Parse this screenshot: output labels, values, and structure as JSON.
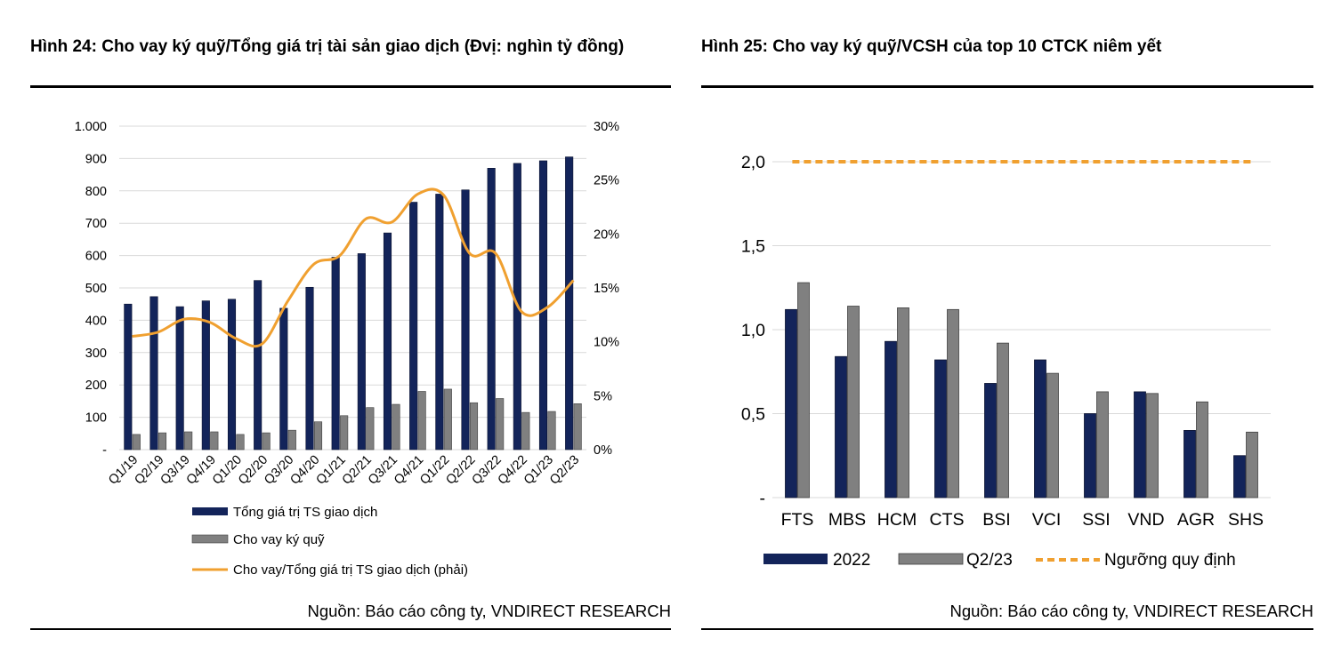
{
  "left_figure": {
    "title": "Hình 24: Cho vay ký quỹ/Tổng giá trị tài sản giao dịch (Đvị: nghìn tỷ đồng)",
    "source": "Nguồn: Báo cáo công ty, VNDIRECT RESEARCH"
  },
  "right_figure": {
    "title": "Hình 25: Cho vay ký quỹ/VCSH của top 10 CTCK niêm yết",
    "source": "Nguồn: Báo cáo công ty, VNDIRECT RESEARCH"
  },
  "colors": {
    "navy": "#13245a",
    "gray": "#808080",
    "orange": "#f0a030",
    "grid": "#d9d9d9"
  },
  "chart_data": [
    {
      "type": "bar",
      "categories": [
        "Q1/19",
        "Q2/19",
        "Q3/19",
        "Q4/19",
        "Q1/20",
        "Q2/20",
        "Q3/20",
        "Q4/20",
        "Q1/21",
        "Q2/21",
        "Q3/21",
        "Q4/21",
        "Q1/22",
        "Q2/22",
        "Q3/22",
        "Q4/22",
        "Q1/23",
        "Q2/23"
      ],
      "series": [
        {
          "name": "Tổng giá trị TS giao dịch",
          "kind": "bar",
          "axis": "left",
          "color": "#13245a",
          "values": [
            450,
            473,
            442,
            460,
            465,
            523,
            437,
            502,
            595,
            606,
            670,
            765,
            790,
            803,
            870,
            885,
            893,
            905
          ]
        },
        {
          "name": "Cho vay ký quỹ",
          "kind": "bar",
          "axis": "left",
          "color": "#808080",
          "values": [
            47,
            52,
            55,
            55,
            47,
            52,
            60,
            86,
            105,
            130,
            140,
            180,
            187,
            145,
            158,
            115,
            118,
            142
          ]
        },
        {
          "name": "Cho vay/Tổng giá trị TS giao dịch (phải)",
          "kind": "line",
          "axis": "right",
          "color": "#f0a030",
          "values": [
            10.5,
            10.9,
            12.1,
            11.8,
            10.3,
            9.8,
            13.8,
            17.2,
            18.0,
            21.4,
            21.1,
            23.7,
            23.6,
            18.2,
            18.2,
            12.8,
            13.2,
            15.7
          ]
        }
      ],
      "ylim": [
        0,
        1000
      ],
      "y2lim": [
        0,
        30
      ],
      "y_ticks": [
        "-",
        "100",
        "200",
        "300",
        "400",
        "500",
        "600",
        "700",
        "800",
        "900",
        "1.000"
      ],
      "y2_ticks": [
        "0%",
        "5%",
        "10%",
        "15%",
        "20%",
        "25%",
        "30%"
      ],
      "grid": true,
      "legend_position": "bottom"
    },
    {
      "type": "bar",
      "categories": [
        "FTS",
        "MBS",
        "HCM",
        "CTS",
        "BSI",
        "VCI",
        "SSI",
        "VND",
        "AGR",
        "SHS"
      ],
      "series": [
        {
          "name": "2022",
          "kind": "bar",
          "color": "#13245a",
          "values": [
            1.12,
            0.84,
            0.93,
            0.82,
            0.68,
            0.82,
            0.5,
            0.63,
            0.4,
            0.25
          ]
        },
        {
          "name": "Q2/23",
          "kind": "bar",
          "color": "#808080",
          "values": [
            1.28,
            1.14,
            1.13,
            1.12,
            0.92,
            0.74,
            0.63,
            0.62,
            0.57,
            0.39
          ]
        },
        {
          "name": "Ngưỡng quy định",
          "kind": "line",
          "style": "dashed",
          "color": "#f0a030",
          "values": [
            2.0,
            2.0,
            2.0,
            2.0,
            2.0,
            2.0,
            2.0,
            2.0,
            2.0,
            2.0
          ]
        }
      ],
      "ylim": [
        0,
        2.0
      ],
      "y_ticks": [
        "-",
        "0,5",
        "1,0",
        "1,5",
        "2,0"
      ],
      "grid": true,
      "legend_position": "bottom"
    }
  ]
}
